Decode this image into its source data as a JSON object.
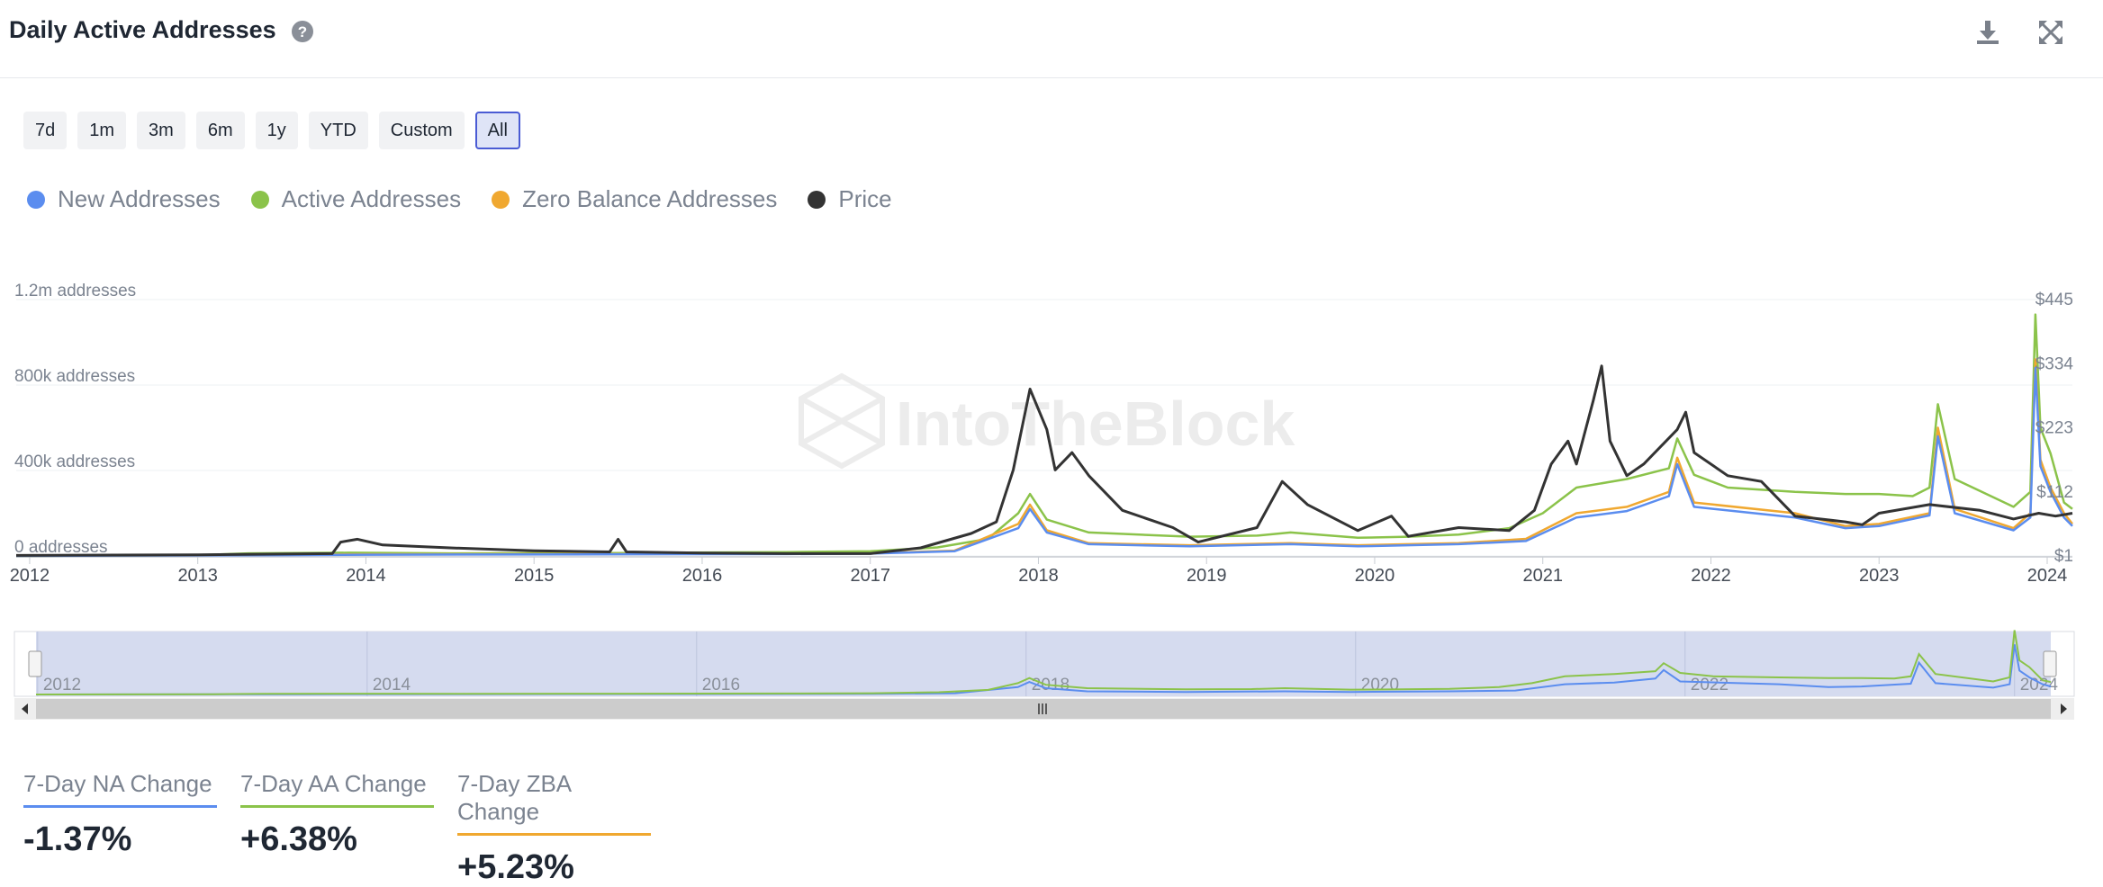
{
  "header": {
    "title": "Daily Active Addresses"
  },
  "range_buttons": [
    {
      "label": "7d"
    },
    {
      "label": "1m"
    },
    {
      "label": "3m"
    },
    {
      "label": "6m"
    },
    {
      "label": "1y"
    },
    {
      "label": "YTD"
    },
    {
      "label": "Custom"
    },
    {
      "label": "All",
      "active": true
    }
  ],
  "legend": [
    {
      "label": "New Addresses",
      "color": "#5b8def"
    },
    {
      "label": "Active Addresses",
      "color": "#8bc34a"
    },
    {
      "label": "Zero Balance Addresses",
      "color": "#f0a830"
    },
    {
      "label": "Price",
      "color": "#333333"
    }
  ],
  "watermark": "IntoTheBlock",
  "chart_data": {
    "type": "line",
    "x_range": [
      2011.92,
      2024.15
    ],
    "x_ticks": [
      "2012",
      "2013",
      "2014",
      "2015",
      "2016",
      "2017",
      "2018",
      "2019",
      "2020",
      "2021",
      "2022",
      "2023",
      "2024"
    ],
    "y_left_ticks": [
      "0 addresses",
      "400k addresses",
      "800k addresses",
      "1.2m addresses"
    ],
    "y_left_range": [
      0,
      1200000
    ],
    "y_right_ticks": [
      "$1",
      "$112",
      "$223",
      "$334",
      "$445"
    ],
    "y_right_range": [
      1,
      445
    ],
    "series": [
      {
        "name": "Active Addresses",
        "axis": "left",
        "points": [
          [
            2011.92,
            0
          ],
          [
            2013.0,
            4000
          ],
          [
            2013.3,
            12000
          ],
          [
            2013.9,
            15000
          ],
          [
            2014.5,
            12000
          ],
          [
            2015.5,
            14000
          ],
          [
            2016.5,
            18000
          ],
          [
            2017.0,
            22000
          ],
          [
            2017.4,
            40000
          ],
          [
            2017.7,
            80000
          ],
          [
            2017.88,
            200000
          ],
          [
            2017.95,
            290000
          ],
          [
            2018.05,
            170000
          ],
          [
            2018.3,
            110000
          ],
          [
            2018.9,
            90000
          ],
          [
            2019.3,
            95000
          ],
          [
            2019.5,
            110000
          ],
          [
            2019.9,
            85000
          ],
          [
            2020.2,
            90000
          ],
          [
            2020.5,
            100000
          ],
          [
            2020.8,
            130000
          ],
          [
            2021.0,
            200000
          ],
          [
            2021.2,
            320000
          ],
          [
            2021.5,
            360000
          ],
          [
            2021.75,
            410000
          ],
          [
            2021.8,
            550000
          ],
          [
            2021.9,
            380000
          ],
          [
            2022.1,
            320000
          ],
          [
            2022.5,
            300000
          ],
          [
            2022.8,
            290000
          ],
          [
            2023.0,
            290000
          ],
          [
            2023.2,
            280000
          ],
          [
            2023.3,
            320000
          ],
          [
            2023.35,
            710000
          ],
          [
            2023.45,
            360000
          ],
          [
            2023.8,
            230000
          ],
          [
            2023.9,
            300000
          ],
          [
            2023.93,
            1130000
          ],
          [
            2023.96,
            600000
          ],
          [
            2024.02,
            480000
          ],
          [
            2024.1,
            250000
          ],
          [
            2024.15,
            220000
          ]
        ]
      },
      {
        "name": "Zero Balance Addresses",
        "axis": "left",
        "points": [
          [
            2011.92,
            0
          ],
          [
            2013.5,
            5000
          ],
          [
            2014.0,
            8000
          ],
          [
            2015.5,
            9000
          ],
          [
            2016.5,
            10000
          ],
          [
            2017.0,
            12000
          ],
          [
            2017.5,
            25000
          ],
          [
            2017.88,
            150000
          ],
          [
            2017.95,
            240000
          ],
          [
            2018.05,
            120000
          ],
          [
            2018.3,
            60000
          ],
          [
            2018.9,
            50000
          ],
          [
            2019.5,
            60000
          ],
          [
            2019.9,
            50000
          ],
          [
            2020.5,
            60000
          ],
          [
            2020.9,
            80000
          ],
          [
            2021.2,
            200000
          ],
          [
            2021.5,
            230000
          ],
          [
            2021.75,
            300000
          ],
          [
            2021.8,
            460000
          ],
          [
            2021.9,
            250000
          ],
          [
            2022.5,
            200000
          ],
          [
            2022.8,
            140000
          ],
          [
            2023.0,
            150000
          ],
          [
            2023.3,
            200000
          ],
          [
            2023.35,
            600000
          ],
          [
            2023.45,
            220000
          ],
          [
            2023.8,
            130000
          ],
          [
            2023.9,
            200000
          ],
          [
            2023.93,
            920000
          ],
          [
            2023.96,
            450000
          ],
          [
            2024.02,
            320000
          ],
          [
            2024.1,
            200000
          ],
          [
            2024.15,
            150000
          ]
        ]
      },
      {
        "name": "New Addresses",
        "axis": "left",
        "points": [
          [
            2011.92,
            0
          ],
          [
            2013.5,
            4000
          ],
          [
            2014.0,
            6000
          ],
          [
            2015.5,
            8000
          ],
          [
            2016.5,
            9000
          ],
          [
            2017.0,
            11000
          ],
          [
            2017.5,
            22000
          ],
          [
            2017.88,
            130000
          ],
          [
            2017.95,
            220000
          ],
          [
            2018.05,
            110000
          ],
          [
            2018.3,
            55000
          ],
          [
            2018.9,
            45000
          ],
          [
            2019.5,
            55000
          ],
          [
            2019.9,
            45000
          ],
          [
            2020.5,
            55000
          ],
          [
            2020.9,
            70000
          ],
          [
            2021.2,
            180000
          ],
          [
            2021.5,
            210000
          ],
          [
            2021.75,
            280000
          ],
          [
            2021.8,
            430000
          ],
          [
            2021.9,
            230000
          ],
          [
            2022.5,
            180000
          ],
          [
            2022.8,
            130000
          ],
          [
            2023.0,
            140000
          ],
          [
            2023.3,
            190000
          ],
          [
            2023.35,
            560000
          ],
          [
            2023.45,
            200000
          ],
          [
            2023.8,
            120000
          ],
          [
            2023.9,
            180000
          ],
          [
            2023.93,
            880000
          ],
          [
            2023.96,
            420000
          ],
          [
            2024.02,
            300000
          ],
          [
            2024.1,
            180000
          ],
          [
            2024.15,
            140000
          ]
        ]
      },
      {
        "name": "Price",
        "axis": "right",
        "points": [
          [
            2011.92,
            2
          ],
          [
            2013.0,
            3
          ],
          [
            2013.8,
            5
          ],
          [
            2013.85,
            25
          ],
          [
            2013.95,
            30
          ],
          [
            2014.1,
            20
          ],
          [
            2014.5,
            15
          ],
          [
            2015.0,
            10
          ],
          [
            2015.45,
            8
          ],
          [
            2015.5,
            30
          ],
          [
            2015.55,
            8
          ],
          [
            2016.0,
            6
          ],
          [
            2016.5,
            5
          ],
          [
            2017.0,
            5
          ],
          [
            2017.3,
            15
          ],
          [
            2017.6,
            40
          ],
          [
            2017.75,
            60
          ],
          [
            2017.85,
            150
          ],
          [
            2017.95,
            290
          ],
          [
            2018.05,
            220
          ],
          [
            2018.1,
            150
          ],
          [
            2018.2,
            180
          ],
          [
            2018.3,
            140
          ],
          [
            2018.5,
            80
          ],
          [
            2018.8,
            50
          ],
          [
            2018.95,
            25
          ],
          [
            2019.3,
            50
          ],
          [
            2019.45,
            130
          ],
          [
            2019.6,
            90
          ],
          [
            2019.9,
            45
          ],
          [
            2020.1,
            70
          ],
          [
            2020.2,
            35
          ],
          [
            2020.5,
            50
          ],
          [
            2020.8,
            45
          ],
          [
            2020.95,
            80
          ],
          [
            2021.05,
            160
          ],
          [
            2021.15,
            200
          ],
          [
            2021.2,
            160
          ],
          [
            2021.3,
            270
          ],
          [
            2021.35,
            330
          ],
          [
            2021.4,
            200
          ],
          [
            2021.5,
            140
          ],
          [
            2021.6,
            160
          ],
          [
            2021.8,
            220
          ],
          [
            2021.85,
            250
          ],
          [
            2021.9,
            180
          ],
          [
            2022.1,
            140
          ],
          [
            2022.3,
            130
          ],
          [
            2022.5,
            70
          ],
          [
            2022.8,
            60
          ],
          [
            2022.9,
            55
          ],
          [
            2023.0,
            75
          ],
          [
            2023.3,
            90
          ],
          [
            2023.6,
            80
          ],
          [
            2023.8,
            65
          ],
          [
            2023.95,
            75
          ],
          [
            2024.05,
            70
          ],
          [
            2024.15,
            75
          ]
        ]
      }
    ]
  },
  "navigator": {
    "x_ticks": [
      "2012",
      "2014",
      "2016",
      "2018",
      "2020",
      "2022",
      "2024"
    ]
  },
  "stats": [
    {
      "label": "7-Day NA Change",
      "value": "-1.37%",
      "color": "#5b8def"
    },
    {
      "label": "7-Day AA Change",
      "value": "+6.38%",
      "color": "#8bc34a"
    },
    {
      "label": "7-Day ZBA Change",
      "value": "+5.23%",
      "color": "#f0a830"
    }
  ]
}
